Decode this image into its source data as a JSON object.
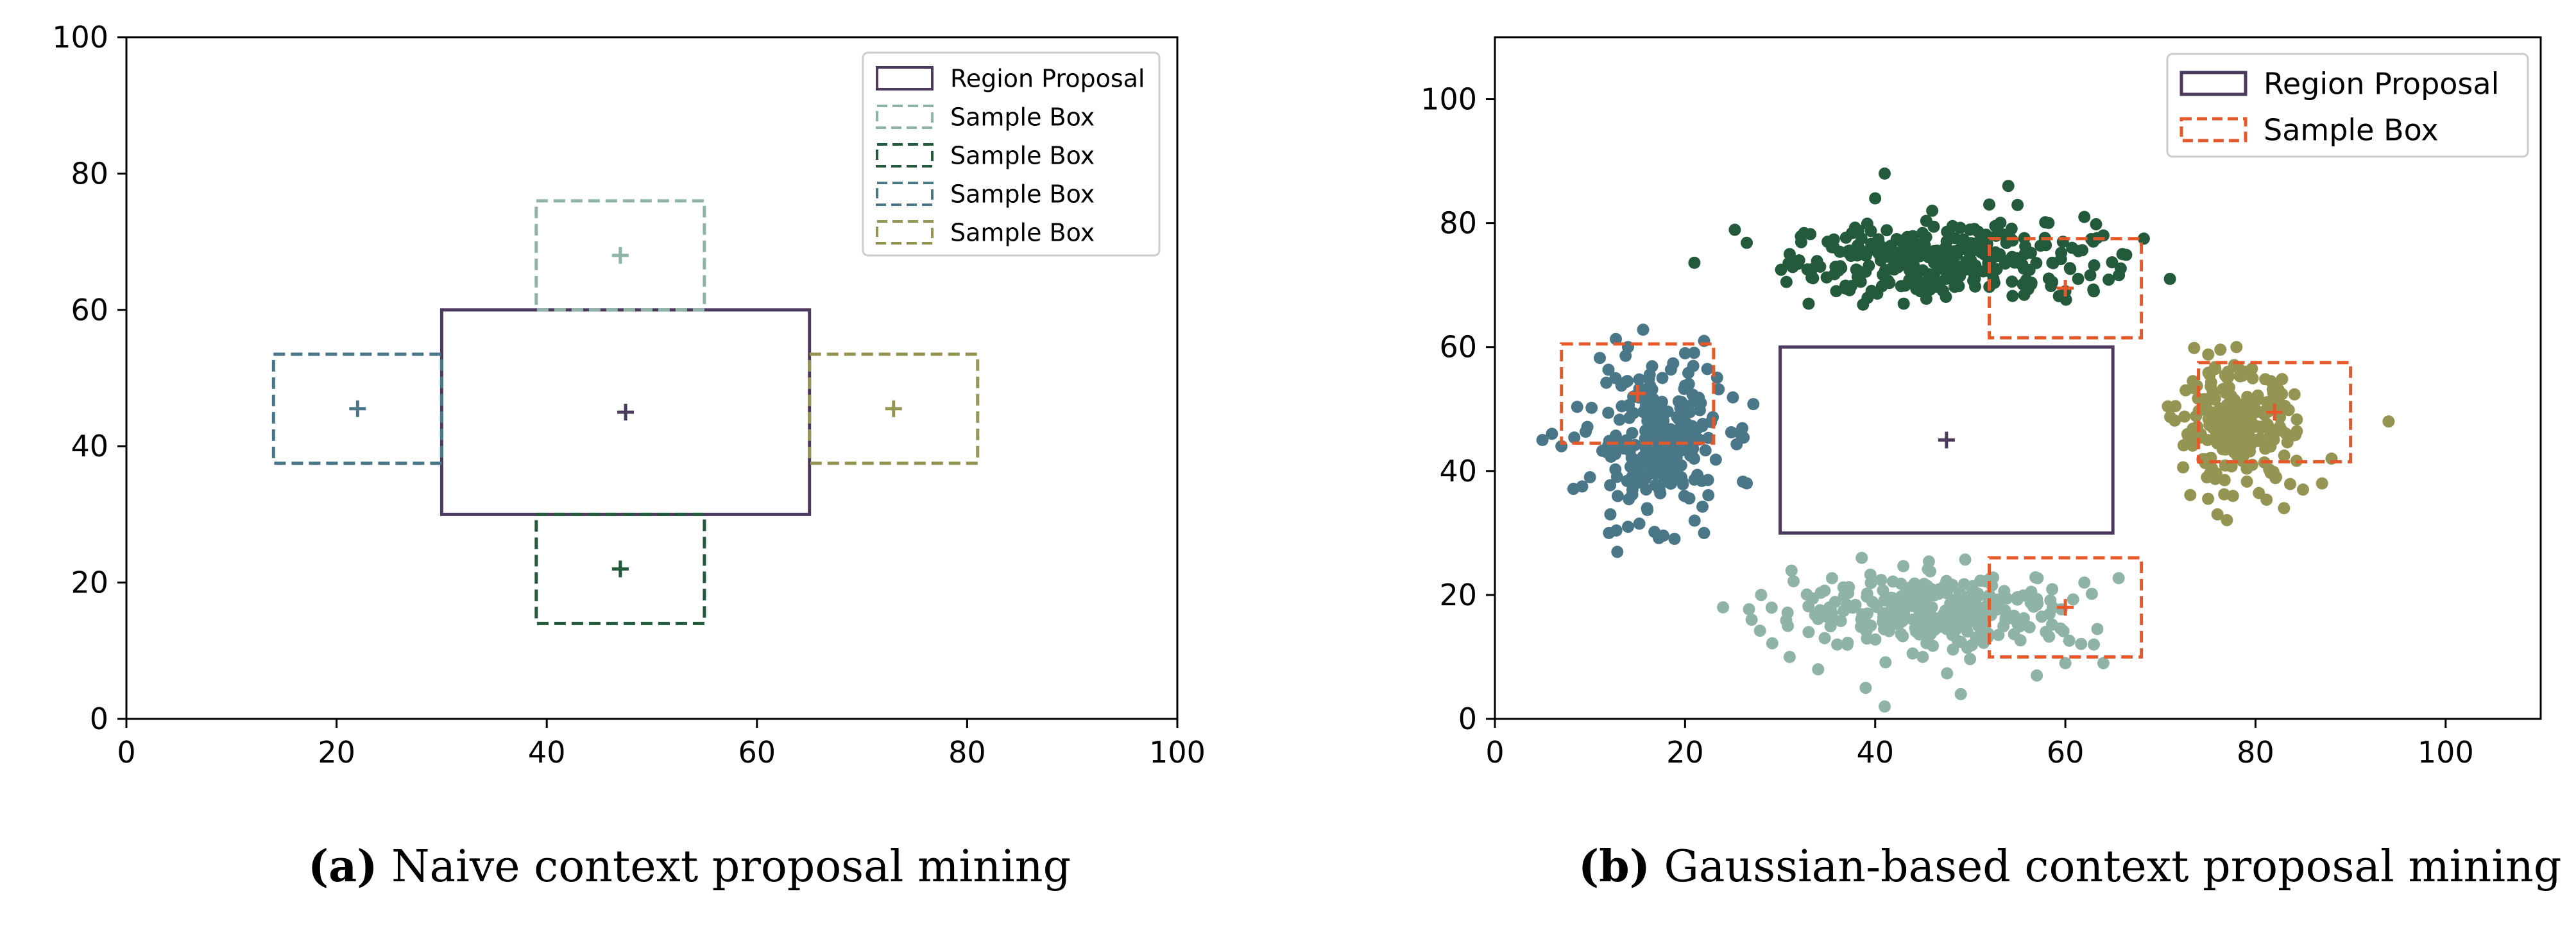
{
  "colors": {
    "region": "#4b3a5e",
    "light_green": "#8fb3a6",
    "dark_green": "#245a3c",
    "teal": "#4a7788",
    "olive": "#949552",
    "orange": "#e4582a"
  },
  "captions": {
    "a_letter": "(a)",
    "a_text": "Naive context proposal mining",
    "b_letter": "(b)",
    "b_text": "Gaussian-based context proposal mining"
  },
  "chart_data": [
    {
      "type": "scatter",
      "panel": "a",
      "title": "",
      "xlabel": "",
      "ylabel": "",
      "xlim": [
        0,
        100
      ],
      "ylim": [
        0,
        100
      ],
      "xticks": [
        "0",
        "20",
        "40",
        "60",
        "80",
        "100"
      ],
      "yticks": [
        "0",
        "20",
        "40",
        "60",
        "80",
        "100"
      ],
      "grid": false,
      "legend_position": "top-right",
      "legend": [
        {
          "label": "Region Proposal",
          "color": "#4b3a5e",
          "style": "solid"
        },
        {
          "label": "Sample Box",
          "color": "#8fb3a6",
          "style": "dashed"
        },
        {
          "label": "Sample Box",
          "color": "#245a3c",
          "style": "dashed"
        },
        {
          "label": "Sample Box",
          "color": "#4a7788",
          "style": "dashed"
        },
        {
          "label": "Sample Box",
          "color": "#949552",
          "style": "dashed"
        }
      ],
      "boxes": [
        {
          "name": "region-proposal",
          "x0": 30,
          "x1": 65,
          "y0": 30,
          "y1": 60,
          "center": [
            47.5,
            45
          ],
          "color": "#4b3a5e",
          "style": "solid"
        },
        {
          "name": "sample-box-top",
          "x0": 39,
          "x1": 55,
          "y0": 60,
          "y1": 76,
          "center": [
            47,
            68
          ],
          "color": "#8fb3a6",
          "style": "dashed"
        },
        {
          "name": "sample-box-bottom",
          "x0": 39,
          "x1": 55,
          "y0": 14,
          "y1": 30,
          "center": [
            47,
            22
          ],
          "color": "#245a3c",
          "style": "dashed"
        },
        {
          "name": "sample-box-left",
          "x0": 14,
          "x1": 30,
          "y0": 37.5,
          "y1": 53.5,
          "center": [
            22,
            45.5
          ],
          "color": "#4a7788",
          "style": "dashed"
        },
        {
          "name": "sample-box-right",
          "x0": 65,
          "x1": 81,
          "y0": 37.5,
          "y1": 53.5,
          "center": [
            73,
            45.5
          ],
          "color": "#949552",
          "style": "dashed"
        }
      ]
    },
    {
      "type": "scatter",
      "panel": "b",
      "title": "",
      "xlabel": "",
      "ylabel": "",
      "xlim": [
        0,
        110
      ],
      "ylim": [
        0,
        110
      ],
      "xticks": [
        "0",
        "20",
        "40",
        "60",
        "80",
        "100"
      ],
      "yticks": [
        "0",
        "20",
        "40",
        "60",
        "80",
        "100"
      ],
      "grid": false,
      "legend_position": "top-right",
      "legend": [
        {
          "label": "Region Proposal",
          "color": "#4b3a5e",
          "style": "solid"
        },
        {
          "label": "Sample Box",
          "color": "#e4582a",
          "style": "dashed"
        }
      ],
      "boxes": [
        {
          "name": "region-proposal",
          "x0": 30,
          "x1": 65,
          "y0": 30,
          "y1": 60,
          "center": [
            47.5,
            45
          ],
          "color": "#4b3a5e",
          "style": "solid"
        },
        {
          "name": "sample-box-top",
          "x0": 52,
          "x1": 68,
          "y0": 61.5,
          "y1": 77.5,
          "center": [
            60,
            69.5
          ],
          "color": "#e4582a",
          "style": "dashed"
        },
        {
          "name": "sample-box-left",
          "x0": 7,
          "x1": 23,
          "y0": 44.5,
          "y1": 60.5,
          "center": [
            15,
            52.5
          ],
          "color": "#e4582a",
          "style": "dashed"
        },
        {
          "name": "sample-box-right",
          "x0": 74,
          "x1": 90,
          "y0": 41.5,
          "y1": 57.5,
          "center": [
            82,
            49.5
          ],
          "color": "#e4582a",
          "style": "dashed"
        },
        {
          "name": "sample-box-bottom",
          "x0": 52,
          "x1": 68,
          "y0": 10,
          "y1": 26,
          "center": [
            60,
            18
          ],
          "color": "#e4582a",
          "style": "dashed"
        }
      ],
      "scatter_series": [
        {
          "name": "top-samples",
          "color": "#245a3c",
          "count": 300,
          "mean": [
            47,
            74
          ],
          "spread": [
            8,
            3
          ],
          "outliers": [
            [
              31,
              75
            ],
            [
              32,
              74
            ],
            [
              35,
              77
            ],
            [
              40,
              84
            ],
            [
              41,
              88
            ],
            [
              46,
              82
            ],
            [
              52,
              83
            ],
            [
              54,
              86
            ],
            [
              62,
              81
            ],
            [
              64,
              78
            ],
            [
              66,
              75
            ],
            [
              71,
              71
            ],
            [
              33,
              67
            ],
            [
              43,
              67
            ],
            [
              60,
              69
            ],
            [
              63,
              69
            ]
          ]
        },
        {
          "name": "left-samples",
          "color": "#4a7788",
          "count": 250,
          "mean": [
            17,
            45
          ],
          "spread": [
            3.5,
            6
          ],
          "outliers": [
            [
              5,
              45
            ],
            [
              6,
              46
            ],
            [
              7,
              44
            ],
            [
              10,
              39
            ],
            [
              12,
              30
            ],
            [
              14,
              31
            ],
            [
              16,
              34
            ],
            [
              21,
              32
            ],
            [
              22,
              30
            ],
            [
              22,
              61
            ],
            [
              20,
              59
            ],
            [
              14,
              60
            ]
          ]
        },
        {
          "name": "right-samples",
          "color": "#949552",
          "count": 250,
          "mean": [
            78,
            47
          ],
          "spread": [
            3,
            4.5
          ],
          "outliers": [
            [
              94,
              48
            ],
            [
              88,
              42
            ],
            [
              87,
              38
            ],
            [
              83,
              34
            ],
            [
              85,
              37
            ],
            [
              79,
              56
            ],
            [
              78,
              60
            ],
            [
              76,
              33
            ]
          ]
        },
        {
          "name": "bottom-samples",
          "color": "#8fb3a6",
          "count": 300,
          "mean": [
            47,
            17.5
          ],
          "spread": [
            7.5,
            3
          ],
          "outliers": [
            [
              24,
              18
            ],
            [
              27,
              16
            ],
            [
              28,
              20
            ],
            [
              31,
              10
            ],
            [
              33,
              14
            ],
            [
              34,
              8
            ],
            [
              36,
              12
            ],
            [
              39,
              5
            ],
            [
              41,
              2
            ],
            [
              45,
              10
            ],
            [
              49,
              4
            ],
            [
              57,
              7
            ],
            [
              60,
              9
            ],
            [
              63,
              12
            ],
            [
              64,
              9
            ],
            [
              62,
              22
            ]
          ]
        }
      ]
    }
  ]
}
